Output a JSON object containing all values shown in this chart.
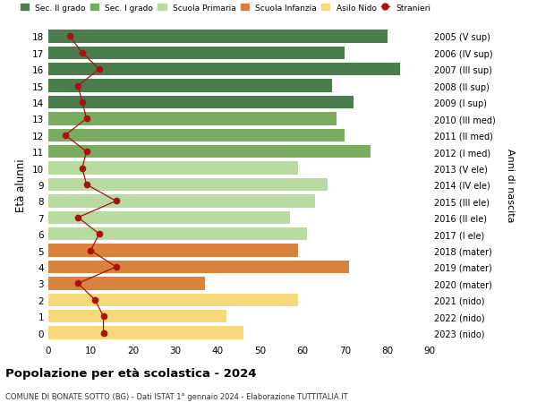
{
  "ages": [
    18,
    17,
    16,
    15,
    14,
    13,
    12,
    11,
    10,
    9,
    8,
    7,
    6,
    5,
    4,
    3,
    2,
    1,
    0
  ],
  "bar_values": [
    80,
    70,
    83,
    67,
    72,
    68,
    70,
    76,
    59,
    66,
    63,
    57,
    61,
    59,
    71,
    37,
    59,
    42,
    46
  ],
  "stranieri": [
    5,
    8,
    12,
    7,
    8,
    9,
    4,
    9,
    8,
    9,
    16,
    7,
    12,
    10,
    16,
    7,
    11,
    13,
    13
  ],
  "right_labels": [
    "2005 (V sup)",
    "2006 (IV sup)",
    "2007 (III sup)",
    "2008 (II sup)",
    "2009 (I sup)",
    "2010 (III med)",
    "2011 (II med)",
    "2012 (I med)",
    "2013 (V ele)",
    "2014 (IV ele)",
    "2015 (III ele)",
    "2016 (II ele)",
    "2017 (I ele)",
    "2018 (mater)",
    "2019 (mater)",
    "2020 (mater)",
    "2021 (nido)",
    "2022 (nido)",
    "2023 (nido)"
  ],
  "bar_colors": [
    "#4a7c4e",
    "#4a7c4e",
    "#4a7c4e",
    "#4a7c4e",
    "#4a7c4e",
    "#7aab5e",
    "#7aab5e",
    "#7aab5e",
    "#b8d9a0",
    "#b8d9a0",
    "#b8d9a0",
    "#b8d9a0",
    "#b8d9a0",
    "#d9823b",
    "#d9823b",
    "#d9823b",
    "#f5d97a",
    "#f5d97a",
    "#f5d97a"
  ],
  "legend_labels": [
    "Sec. II grado",
    "Sec. I grado",
    "Scuola Primaria",
    "Scuola Infanzia",
    "Asilo Nido",
    "Stranieri"
  ],
  "legend_colors_list": [
    "#4a7c4e",
    "#7aab5e",
    "#b8d9a0",
    "#d9823b",
    "#f5d97a",
    "#aa1111"
  ],
  "ylabel": "Età alunni",
  "right_ylabel": "Anni di nascita",
  "title": "Popolazione per età scolastica - 2024",
  "subtitle": "COMUNE DI BONATE SOTTO (BG) - Dati ISTAT 1° gennaio 2024 - Elaborazione TUTTITALIA.IT",
  "xlim": [
    0,
    90
  ],
  "xticks": [
    0,
    10,
    20,
    30,
    40,
    50,
    60,
    70,
    80,
    90
  ],
  "bg_color": "#ffffff",
  "bar_height": 0.78,
  "stranieri_color": "#aa1111"
}
